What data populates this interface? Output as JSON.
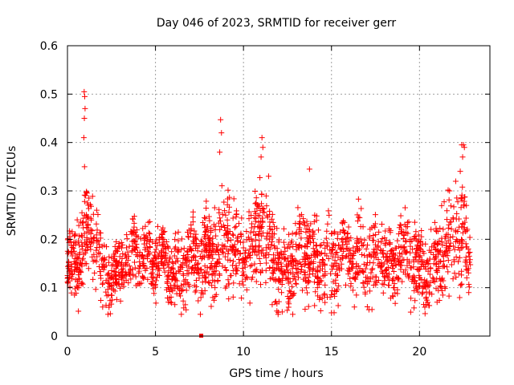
{
  "chart_data": {
    "type": "scatter",
    "title": "Day 046 of 2023, SRMTID for receiver gerr",
    "xlabel": "GPS time / hours",
    "ylabel": "SRMTID / TECUs",
    "xlim": [
      0,
      24
    ],
    "ylim": [
      0,
      0.6
    ],
    "x_ticks": [
      0,
      5,
      10,
      15,
      20
    ],
    "x_tick_labels": [
      "0",
      "5",
      "10",
      "15",
      "20"
    ],
    "y_ticks": [
      0,
      0.1,
      0.2,
      0.3,
      0.4,
      0.5,
      0.6
    ],
    "y_tick_labels": [
      "0",
      "0.1",
      "0.2",
      "0.3",
      "0.4",
      "0.5",
      "0.6"
    ],
    "grid": true,
    "marker": "plus",
    "series_color": "#ff0000",
    "envelope": {
      "description": "approximate per-hour central value and spread of the dense point cloud",
      "x": [
        0,
        0.5,
        1,
        1.5,
        2,
        2.5,
        3,
        3.5,
        4,
        4.5,
        5,
        5.5,
        6,
        6.5,
        7,
        7.5,
        8,
        8.5,
        9,
        9.5,
        10,
        10.5,
        11,
        11.5,
        12,
        12.5,
        13,
        13.5,
        14,
        14.5,
        15,
        15.5,
        16,
        16.5,
        17,
        17.5,
        18,
        18.5,
        19,
        19.5,
        20,
        20.5,
        21,
        21.5,
        22,
        22.5,
        22.9
      ],
      "center": [
        0.15,
        0.15,
        0.2,
        0.2,
        0.12,
        0.12,
        0.14,
        0.16,
        0.17,
        0.16,
        0.16,
        0.17,
        0.12,
        0.13,
        0.17,
        0.15,
        0.16,
        0.18,
        0.2,
        0.18,
        0.16,
        0.18,
        0.22,
        0.18,
        0.14,
        0.12,
        0.18,
        0.18,
        0.15,
        0.14,
        0.16,
        0.17,
        0.17,
        0.16,
        0.15,
        0.17,
        0.17,
        0.15,
        0.19,
        0.17,
        0.14,
        0.13,
        0.15,
        0.18,
        0.2,
        0.22,
        0.14
      ],
      "spread": [
        0.04,
        0.05,
        0.07,
        0.07,
        0.04,
        0.04,
        0.04,
        0.04,
        0.04,
        0.04,
        0.04,
        0.04,
        0.04,
        0.05,
        0.04,
        0.05,
        0.05,
        0.06,
        0.07,
        0.06,
        0.05,
        0.06,
        0.07,
        0.06,
        0.05,
        0.05,
        0.06,
        0.06,
        0.05,
        0.05,
        0.05,
        0.05,
        0.05,
        0.05,
        0.05,
        0.05,
        0.05,
        0.05,
        0.05,
        0.05,
        0.04,
        0.04,
        0.05,
        0.06,
        0.07,
        0.07,
        0.04
      ]
    },
    "extreme_points": [
      {
        "x": 0.95,
        "y": 0.505
      },
      {
        "x": 0.98,
        "y": 0.495
      },
      {
        "x": 1.0,
        "y": 0.47
      },
      {
        "x": 0.96,
        "y": 0.45
      },
      {
        "x": 0.93,
        "y": 0.41
      },
      {
        "x": 0.97,
        "y": 0.35
      },
      {
        "x": 8.7,
        "y": 0.447
      },
      {
        "x": 8.75,
        "y": 0.42
      },
      {
        "x": 8.65,
        "y": 0.38
      },
      {
        "x": 11.05,
        "y": 0.41
      },
      {
        "x": 11.1,
        "y": 0.39
      },
      {
        "x": 11.0,
        "y": 0.37
      },
      {
        "x": 13.75,
        "y": 0.345
      },
      {
        "x": 22.4,
        "y": 0.395
      },
      {
        "x": 22.5,
        "y": 0.395
      },
      {
        "x": 22.55,
        "y": 0.39
      },
      {
        "x": 22.45,
        "y": 0.37
      },
      {
        "x": 2.0,
        "y": 0.06
      },
      {
        "x": 6.1,
        "y": 0.065
      },
      {
        "x": 11.8,
        "y": 0.07
      },
      {
        "x": 12.2,
        "y": 0.05
      },
      {
        "x": 15.0,
        "y": 0.048
      },
      {
        "x": 16.3,
        "y": 0.06
      },
      {
        "x": 17.3,
        "y": 0.055
      },
      {
        "x": 21.0,
        "y": 0.07
      },
      {
        "x": 22.8,
        "y": 0.09
      }
    ],
    "zero_marker": {
      "x": 7.6,
      "y": 0
    }
  }
}
